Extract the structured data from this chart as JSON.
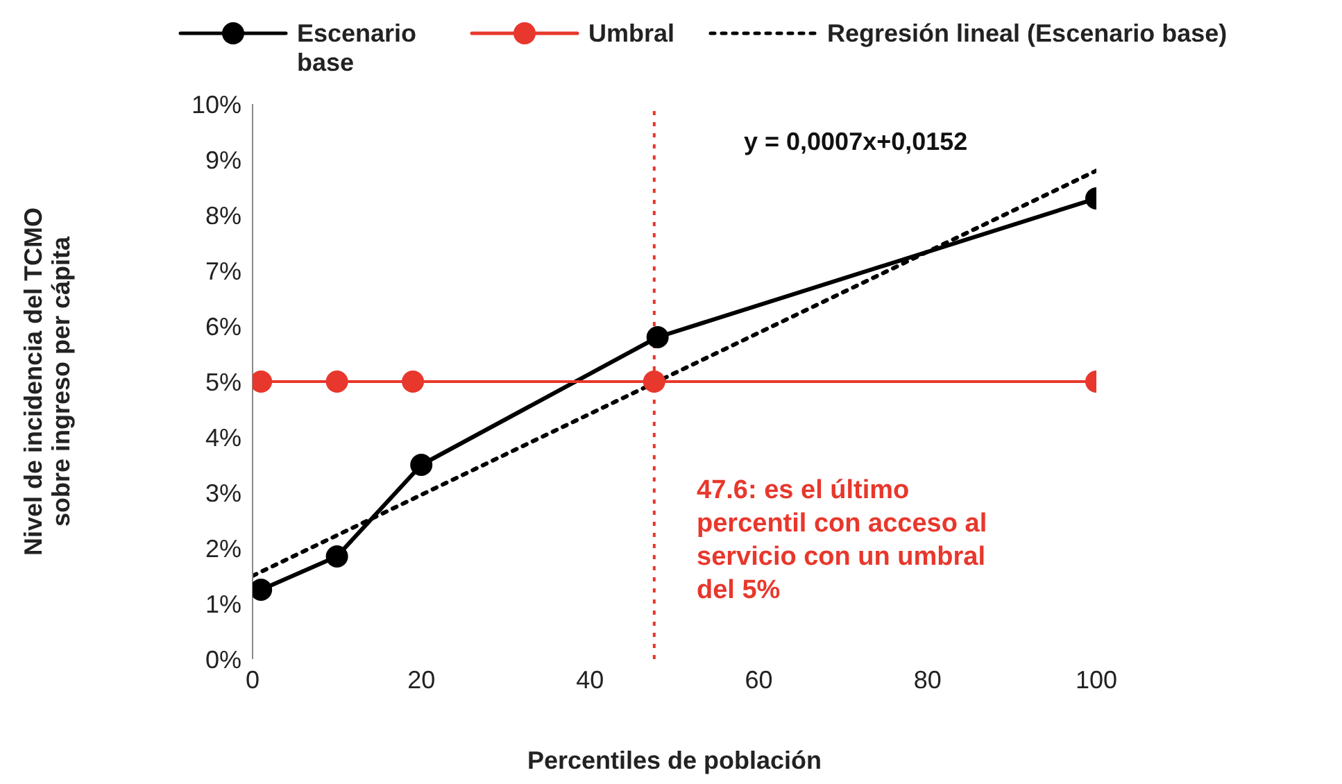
{
  "chart_data": {
    "type": "line",
    "xlabel": "Percentiles de población",
    "ylabel": "Nivel de incidencia del TCMO sobre ingreso per cápita",
    "series": [
      {
        "name": "Escenario base",
        "color": "#000000",
        "x": [
          1,
          10,
          20,
          48,
          100
        ],
        "values": [
          1.25,
          1.85,
          3.5,
          5.8,
          8.3
        ],
        "marker": "circle",
        "line_style": "solid"
      },
      {
        "name": "Umbral",
        "color": "#e8372c",
        "x": [
          1,
          10,
          19,
          47.6,
          100
        ],
        "values": [
          5,
          5,
          5,
          5,
          5
        ],
        "marker": "circle",
        "line_style": "solid"
      },
      {
        "name": "Regresión lineal (Escenario base)",
        "color": "#000000",
        "x": [
          0,
          100
        ],
        "values": [
          1.5,
          8.8
        ],
        "marker": "none",
        "line_style": "dotted"
      }
    ],
    "xlim": [
      0,
      100
    ],
    "xticks": [
      0,
      20,
      40,
      60,
      80,
      100
    ],
    "ylim": [
      0,
      10
    ],
    "yticks": [
      {
        "value": 0,
        "label": "0%"
      },
      {
        "value": 1,
        "label": "1%"
      },
      {
        "value": 2,
        "label": "2%"
      },
      {
        "value": 3,
        "label": "3%"
      },
      {
        "value": 4,
        "label": "4%"
      },
      {
        "value": 5,
        "label": "5%"
      },
      {
        "value": 6,
        "label": "6%"
      },
      {
        "value": 7,
        "label": "7%"
      },
      {
        "value": 8,
        "label": "8%"
      },
      {
        "value": 9,
        "label": "9%"
      },
      {
        "value": 10,
        "label": "10%"
      }
    ],
    "ref_lines": [
      {
        "axis": "x",
        "value": 47.6,
        "color": "#e8372c",
        "line_style": "dotted"
      }
    ],
    "annotations": [
      "y = 0,0007x+0,0152",
      "47.6: es el último percentil con acceso al servicio con un umbral del 5%"
    ],
    "legend": "top"
  }
}
